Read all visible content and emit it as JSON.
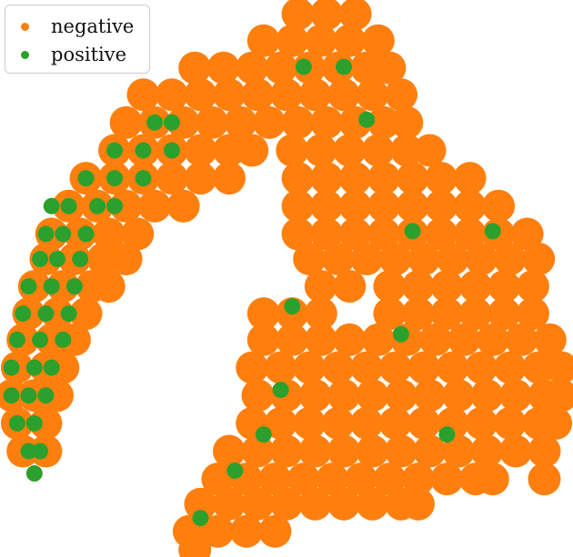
{
  "chart_data": {
    "type": "scatter",
    "title": "",
    "xlabel": "",
    "ylabel": "",
    "axes_visible": false,
    "grid": false,
    "legend_placement": "top-left",
    "xlim": [
      0,
      100
    ],
    "ylim": [
      0,
      100
    ],
    "series": [
      {
        "name": "negative",
        "color": "#ff7f0e",
        "rows": [
          {
            "y": 97.5,
            "x": [
              52,
              57,
              62
            ]
          },
          {
            "y": 92.7,
            "x": [
              46,
              51,
              56,
              61,
              66
            ]
          },
          {
            "y": 87.8,
            "x": [
              34,
              39,
              44,
              49,
              54,
              59,
              64,
              68
            ]
          },
          {
            "y": 83,
            "x": [
              25,
              30,
              35,
              40,
              45,
              50,
              55,
              60,
              65,
              70
            ]
          },
          {
            "y": 78,
            "x": [
              22,
              27,
              32,
              37,
              42,
              47,
              52,
              57,
              62,
              67,
              71
            ]
          },
          {
            "y": 73,
            "x": [
              20,
              25,
              30,
              35,
              40,
              44,
              51,
              56,
              61,
              66,
              71,
              75
            ]
          },
          {
            "y": 68,
            "x": [
              15,
              20,
              25,
              30,
              35,
              40,
              52,
              57,
              62,
              67,
              72,
              77,
              82
            ]
          },
          {
            "y": 63,
            "x": [
              12,
              17,
              22,
              27,
              32,
              52,
              57,
              62,
              67,
              72,
              77,
              82,
              87
            ]
          },
          {
            "y": 58,
            "x": [
              9,
              14,
              19,
              24,
              52,
              57,
              62,
              67,
              72,
              77,
              82,
              87,
              92
            ]
          },
          {
            "y": 53.5,
            "x": [
              8,
              13,
              18,
              22,
              54,
              59,
              64,
              69,
              74,
              79,
              84,
              89,
              94
            ]
          },
          {
            "y": 48.6,
            "x": [
              6,
              11,
              16,
              19,
              56,
              61,
              68,
              73,
              78,
              83,
              88,
              93
            ]
          },
          {
            "y": 43.7,
            "x": [
              5,
              10,
              15,
              46,
              51,
              56,
              68,
              73,
              78,
              83,
              88,
              93
            ]
          },
          {
            "y": 39,
            "x": [
              4,
              9,
              13,
              46,
              51,
              56,
              61,
              66,
              71,
              76,
              81,
              86,
              91,
              96
            ]
          },
          {
            "y": 34,
            "x": [
              3,
              8,
              11,
              44,
              49,
              54,
              59,
              64,
              69,
              74,
              79,
              84,
              89,
              94,
              98
            ]
          },
          {
            "y": 29,
            "x": [
              2,
              6,
              10,
              45,
              50,
              55,
              60,
              65,
              70,
              75,
              80,
              85,
              90,
              95,
              98
            ]
          },
          {
            "y": 24,
            "x": [
              3,
              8,
              44,
              49,
              54,
              59,
              64,
              69,
              74,
              79,
              84,
              89,
              94,
              97
            ]
          },
          {
            "y": 19,
            "x": [
              4,
              8,
              40,
              45,
              50,
              55,
              60,
              65,
              70,
              75,
              80,
              85,
              90,
              95
            ]
          },
          {
            "y": 14,
            "x": [
              38,
              43,
              48,
              53,
              58,
              63,
              68,
              73,
              78,
              83,
              86,
              95
            ]
          },
          {
            "y": 9.5,
            "x": [
              35,
              40,
              45,
              50,
              55,
              60,
              65,
              70,
              73
            ]
          },
          {
            "y": 4.6,
            "x": [
              33,
              38,
              43,
              48
            ]
          },
          {
            "y": 1.3,
            "x": [
              34
            ]
          }
        ]
      },
      {
        "name": "positive",
        "color": "#2ca02c",
        "rows": [
          {
            "y": 78,
            "x": [
              27,
              30
            ]
          },
          {
            "y": 73,
            "x": [
              20,
              25,
              30
            ]
          },
          {
            "y": 68,
            "x": [
              15,
              20,
              25
            ]
          },
          {
            "y": 63,
            "x": [
              9,
              12,
              17,
              20
            ]
          },
          {
            "y": 58,
            "x": [
              8,
              11,
              15
            ]
          },
          {
            "y": 53.5,
            "x": [
              7,
              10,
              14
            ]
          },
          {
            "y": 48.6,
            "x": [
              5,
              9,
              13
            ]
          },
          {
            "y": 43.7,
            "x": [
              4,
              8,
              12
            ]
          },
          {
            "y": 39,
            "x": [
              3,
              7,
              11
            ]
          },
          {
            "y": 34,
            "x": [
              2,
              6,
              9
            ]
          },
          {
            "y": 29,
            "x": [
              2,
              5,
              8
            ]
          },
          {
            "y": 24,
            "x": [
              3,
              6
            ]
          },
          {
            "y": 19,
            "x": [
              5,
              7
            ]
          },
          {
            "y": 15,
            "x": [
              6
            ]
          },
          {
            "y": 88,
            "x": [
              53,
              60
            ]
          },
          {
            "y": 78.5,
            "x": [
              64
            ]
          },
          {
            "y": 58.5,
            "x": [
              72,
              86
            ]
          },
          {
            "y": 45,
            "x": [
              51
            ]
          },
          {
            "y": 40,
            "x": [
              70
            ]
          },
          {
            "y": 30,
            "x": [
              49
            ]
          },
          {
            "y": 22,
            "x": [
              46,
              78
            ]
          },
          {
            "y": 15.5,
            "x": [
              41
            ]
          },
          {
            "y": 7,
            "x": [
              35
            ]
          }
        ]
      }
    ]
  }
}
